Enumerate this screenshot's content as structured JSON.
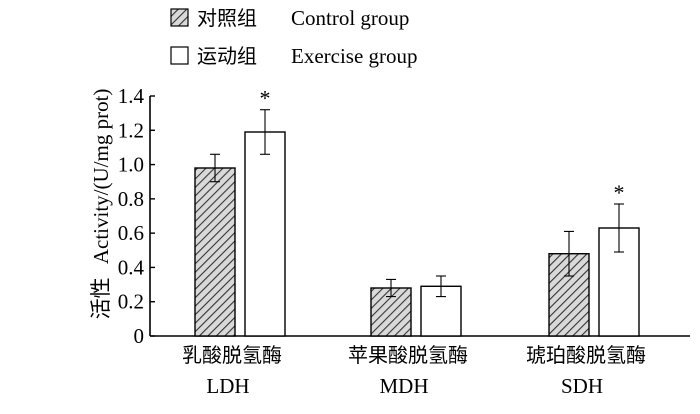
{
  "chart_data": {
    "type": "bar",
    "categories": [
      {
        "label_cn": "乳酸脱氢酶",
        "label_en": "LDH"
      },
      {
        "label_cn": "苹果酸脱氢酶",
        "label_en": "MDH"
      },
      {
        "label_cn": "琥珀酸脱氢酶",
        "label_en": "SDH"
      }
    ],
    "series": [
      {
        "name_cn": "对照组",
        "name_en": "Control group",
        "pattern": "hatched",
        "values": [
          0.98,
          0.28,
          0.48
        ],
        "errors": [
          0.08,
          0.05,
          0.13
        ],
        "significance": [
          "",
          "",
          ""
        ]
      },
      {
        "name_cn": "运动组",
        "name_en": "Exercise group",
        "pattern": "white",
        "values": [
          1.19,
          0.29,
          0.63
        ],
        "errors": [
          0.13,
          0.06,
          0.14
        ],
        "significance": [
          "*",
          "",
          "*"
        ]
      }
    ],
    "ylabel_cn": "活性",
    "ylabel_en": "Activity/(U/mg prot)",
    "ylim": [
      0,
      1.4
    ],
    "yticks": [
      "0",
      "0.2",
      "0.4",
      "0.6",
      "0.8",
      "1.0",
      "1.2",
      "1.4"
    ],
    "legend_position": "top-left",
    "grid": false,
    "colors": {
      "axis": "#000000",
      "hatch_bg": "#d9d9d9",
      "hatch_line": "#333333",
      "open_fill": "#ffffff"
    }
  }
}
